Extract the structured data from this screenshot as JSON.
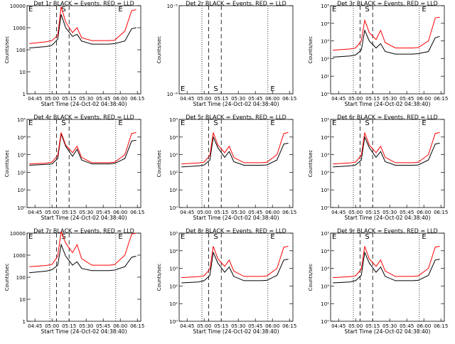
{
  "chart_data": [
    {
      "type": "line",
      "title": "Det 1r BLACK = Events, RED = LLD",
      "ylabel": "Counts/sec",
      "xlabel": "Start Time (24-Oct-02 04:38:40)",
      "yscale": "log",
      "ylim": [
        1,
        10000
      ],
      "yticks": [
        "1",
        "10",
        "100",
        "1000",
        "10000"
      ],
      "xticks": [
        "04:45",
        "05:00",
        "05:15",
        "05:30",
        "05:45",
        "06:00",
        "06:15"
      ],
      "markers": [
        "E",
        "S",
        "E"
      ],
      "series": [
        {
          "color": "#000000",
          "x": [
            "04:40",
            "04:55",
            "05:00",
            "05:05",
            "05:08",
            "05:12",
            "05:18",
            "05:22",
            "05:26",
            "05:35",
            "05:50",
            "05:55",
            "06:04",
            "06:10",
            "06:14"
          ],
          "y": [
            120,
            140,
            160,
            300,
            4000,
            1000,
            400,
            500,
            250,
            180,
            180,
            190,
            250,
            900,
            1000
          ]
        },
        {
          "color": "#ff0000",
          "x": [
            "04:40",
            "04:55",
            "05:00",
            "05:05",
            "05:08",
            "05:12",
            "05:18",
            "05:22",
            "05:26",
            "05:35",
            "05:50",
            "05:55",
            "06:04",
            "06:10",
            "06:14"
          ],
          "y": [
            190,
            230,
            260,
            450,
            9000,
            1800,
            600,
            1000,
            350,
            260,
            260,
            270,
            700,
            6000,
            6500
          ]
        }
      ]
    },
    {
      "type": "line",
      "title": "Det 2r BLACK = Events, RED = LLD",
      "ylabel": "Counts/sec",
      "xlabel": "Start Time (24-Oct-02 04:38:40)",
      "yscale": "log",
      "ylim": [
        1e-06,
        1e-05
      ],
      "yticks": [
        "10⁻⁶",
        "10⁻⁵"
      ],
      "xticks": [
        "04:45",
        "05:00",
        "05:15",
        "05:30",
        "05:45",
        "06:00",
        "06:15"
      ],
      "markers": [
        "E",
        "S",
        "E"
      ],
      "series": []
    },
    {
      "type": "line",
      "title": "Det 3r BLACK = Events, RED = LLD",
      "ylabel": "Counts/sec",
      "xlabel": "Start Time (24-Oct-02 04:38:40)",
      "yscale": "log",
      "ylim": [
        1,
        100000
      ],
      "yticks": [
        "10⁰",
        "10¹",
        "10²",
        "10³",
        "10⁴",
        "10⁵"
      ],
      "xticks": [
        "04:45",
        "05:00",
        "05:15",
        "05:30",
        "05:45",
        "06:00",
        "06:15"
      ],
      "markers": [
        "E",
        "S",
        "E"
      ],
      "series": [
        {
          "color": "#000000",
          "x": [
            "04:40",
            "04:55",
            "05:00",
            "05:05",
            "05:08",
            "05:12",
            "05:18",
            "05:22",
            "05:26",
            "05:35",
            "05:50",
            "05:55",
            "06:04",
            "06:10",
            "06:14"
          ],
          "y": [
            120,
            140,
            160,
            300,
            4000,
            1000,
            400,
            700,
            250,
            180,
            180,
            190,
            250,
            1500,
            1800
          ]
        },
        {
          "color": "#ff0000",
          "x": [
            "04:40",
            "04:55",
            "05:00",
            "05:05",
            "05:08",
            "05:12",
            "05:18",
            "05:22",
            "05:26",
            "05:35",
            "05:50",
            "05:55",
            "06:04",
            "06:10",
            "06:14"
          ],
          "y": [
            300,
            350,
            400,
            1000,
            15000,
            3000,
            1200,
            4000,
            800,
            400,
            400,
            420,
            1000,
            20000,
            22000
          ]
        }
      ]
    },
    {
      "type": "line",
      "title": "Det 4r BLACK = Events, RED = LLD",
      "ylabel": "Counts/sec",
      "xlabel": "Start Time (24-Oct-02 04:38:40)",
      "yscale": "log",
      "ylim": [
        1,
        100000
      ],
      "yticks": [
        "10⁰",
        "10¹",
        "10²",
        "10³",
        "10⁴",
        "10⁵"
      ],
      "xticks": [
        "04:45",
        "05:00",
        "05:15",
        "05:30",
        "05:45",
        "06:00",
        "06:15"
      ],
      "markers": [
        "E",
        "S",
        "E"
      ],
      "series": [
        {
          "color": "#000000",
          "x": [
            "04:40",
            "04:55",
            "05:00",
            "05:05",
            "05:08",
            "05:12",
            "05:18",
            "05:22",
            "05:26",
            "05:35",
            "05:50",
            "05:55",
            "06:04",
            "06:10",
            "06:14"
          ],
          "y": [
            250,
            280,
            300,
            600,
            15000,
            3000,
            800,
            2000,
            500,
            300,
            300,
            320,
            600,
            6000,
            6500
          ]
        },
        {
          "color": "#ff0000",
          "x": [
            "04:40",
            "04:55",
            "05:00",
            "05:05",
            "05:08",
            "05:12",
            "05:18",
            "05:22",
            "05:26",
            "05:35",
            "05:50",
            "05:55",
            "06:04",
            "06:10",
            "06:14"
          ],
          "y": [
            300,
            330,
            380,
            900,
            18000,
            3500,
            1300,
            3000,
            700,
            350,
            350,
            370,
            1000,
            16000,
            18000
          ]
        }
      ]
    },
    {
      "type": "line",
      "title": "Det 5r BLACK = Events, RED = LLD",
      "ylabel": "Counts/sec",
      "xlabel": "Start Time (24-Oct-02 04:38:40)",
      "yscale": "log",
      "ylim": [
        1,
        100000
      ],
      "yticks": [
        "10⁰",
        "10¹",
        "10²",
        "10³",
        "10⁴",
        "10⁵"
      ],
      "xticks": [
        "04:45",
        "05:00",
        "05:15",
        "05:30",
        "05:45",
        "06:00",
        "06:15"
      ],
      "markers": [
        "E",
        "S",
        "E"
      ],
      "series": [
        {
          "color": "#000000",
          "x": [
            "04:40",
            "04:55",
            "05:00",
            "05:05",
            "05:08",
            "05:12",
            "05:18",
            "05:22",
            "05:26",
            "05:35",
            "05:50",
            "05:55",
            "06:04",
            "06:10",
            "06:14"
          ],
          "y": [
            200,
            230,
            260,
            500,
            10000,
            2500,
            700,
            1500,
            400,
            250,
            250,
            260,
            500,
            4000,
            4500
          ]
        },
        {
          "color": "#ff0000",
          "x": [
            "04:40",
            "04:55",
            "05:00",
            "05:05",
            "05:08",
            "05:12",
            "05:18",
            "05:22",
            "05:26",
            "05:35",
            "05:50",
            "05:55",
            "06:04",
            "06:10",
            "06:14"
          ],
          "y": [
            300,
            340,
            380,
            900,
            18000,
            3500,
            1300,
            3000,
            700,
            350,
            350,
            370,
            1000,
            16000,
            18000
          ]
        }
      ]
    },
    {
      "type": "line",
      "title": "Det 6r BLACK = Events, RED = LLD",
      "ylabel": "Counts/sec",
      "xlabel": "Start Time (24-Oct-02 04:38:40)",
      "yscale": "log",
      "ylim": [
        1,
        100000
      ],
      "yticks": [
        "10⁰",
        "10¹",
        "10²",
        "10³",
        "10⁴",
        "10⁵"
      ],
      "xticks": [
        "04:45",
        "05:00",
        "05:15",
        "05:30",
        "05:45",
        "06:00",
        "06:15"
      ],
      "markers": [
        "E",
        "S",
        "E"
      ],
      "series": [
        {
          "color": "#000000",
          "x": [
            "04:40",
            "04:55",
            "05:00",
            "05:05",
            "05:08",
            "05:12",
            "05:18",
            "05:22",
            "05:26",
            "05:35",
            "05:50",
            "05:55",
            "06:04",
            "06:10",
            "06:14"
          ],
          "y": [
            200,
            230,
            260,
            500,
            10000,
            2500,
            700,
            1500,
            400,
            250,
            250,
            260,
            500,
            4000,
            4500
          ]
        },
        {
          "color": "#ff0000",
          "x": [
            "04:40",
            "04:55",
            "05:00",
            "05:05",
            "05:08",
            "05:12",
            "05:18",
            "05:22",
            "05:26",
            "05:35",
            "05:50",
            "05:55",
            "06:04",
            "06:10",
            "06:14"
          ],
          "y": [
            300,
            340,
            380,
            900,
            18000,
            3500,
            1300,
            3000,
            700,
            350,
            350,
            370,
            1000,
            16000,
            18000
          ]
        }
      ]
    },
    {
      "type": "line",
      "title": "Det 7r BLACK = Events, RED = LLD",
      "ylabel": "Counts/sec",
      "xlabel": "Start Time (24-Oct-02 04:38:40)",
      "yscale": "log",
      "ylim": [
        1,
        10000
      ],
      "yticks": [
        "1",
        "10",
        "100",
        "1000",
        "10000"
      ],
      "xticks": [
        "04:45",
        "05:00",
        "05:15",
        "05:30",
        "05:45",
        "06:00",
        "06:15"
      ],
      "markers": [
        "E",
        "S",
        "E"
      ],
      "series": [
        {
          "color": "#000000",
          "x": [
            "04:40",
            "04:55",
            "05:00",
            "05:05",
            "05:08",
            "05:12",
            "05:18",
            "05:22",
            "05:26",
            "05:35",
            "05:50",
            "05:55",
            "06:04",
            "06:10",
            "06:14"
          ],
          "y": [
            160,
            190,
            220,
            350,
            3000,
            900,
            350,
            500,
            250,
            200,
            200,
            210,
            300,
            800,
            900
          ]
        },
        {
          "color": "#ff0000",
          "x": [
            "04:40",
            "04:55",
            "05:00",
            "05:05",
            "05:08",
            "05:12",
            "05:18",
            "05:22",
            "05:26",
            "05:35",
            "05:50",
            "05:55",
            "06:04",
            "06:10",
            "06:14"
          ],
          "y": [
            300,
            340,
            380,
            900,
            12000,
            3500,
            1300,
            3000,
            700,
            350,
            350,
            370,
            1000,
            9000,
            10000
          ]
        }
      ]
    },
    {
      "type": "line",
      "title": "Det 8r BLACK = Events, RED = LLD",
      "ylabel": "Counts/sec",
      "xlabel": "Start Time (24-Oct-02 04:38:40)",
      "yscale": "log",
      "ylim": [
        1,
        100000
      ],
      "yticks": [
        "10⁰",
        "10¹",
        "10²",
        "10³",
        "10⁴",
        "10⁵"
      ],
      "xticks": [
        "04:45",
        "05:00",
        "05:15",
        "05:30",
        "05:45",
        "06:00",
        "06:15"
      ],
      "markers": [
        "E",
        "S",
        "E"
      ],
      "series": [
        {
          "color": "#000000",
          "x": [
            "04:40",
            "04:55",
            "05:00",
            "05:05",
            "05:08",
            "05:12",
            "05:18",
            "05:22",
            "05:26",
            "05:35",
            "05:50",
            "05:55",
            "06:04",
            "06:10",
            "06:14"
          ],
          "y": [
            150,
            170,
            200,
            400,
            8000,
            2000,
            600,
            1200,
            350,
            200,
            200,
            210,
            400,
            3000,
            3300
          ]
        },
        {
          "color": "#ff0000",
          "x": [
            "04:40",
            "04:55",
            "05:00",
            "05:05",
            "05:08",
            "05:12",
            "05:18",
            "05:22",
            "05:26",
            "05:35",
            "05:50",
            "05:55",
            "06:04",
            "06:10",
            "06:14"
          ],
          "y": [
            300,
            340,
            380,
            900,
            18000,
            3500,
            1300,
            3000,
            700,
            350,
            350,
            370,
            1000,
            16000,
            18000
          ]
        }
      ]
    },
    {
      "type": "line",
      "title": "Det 9r BLACK = Events, RED = LLD",
      "ylabel": "Counts/sec",
      "xlabel": "Start Time (24-Oct-02 04:38:40)",
      "yscale": "log",
      "ylim": [
        1,
        100000
      ],
      "yticks": [
        "10⁰",
        "10¹",
        "10²",
        "10³",
        "10⁴",
        "10⁵"
      ],
      "xticks": [
        "04:45",
        "05:00",
        "05:15",
        "05:30",
        "05:45",
        "06:00",
        "06:15"
      ],
      "markers": [
        "E",
        "S",
        "E"
      ],
      "series": [
        {
          "color": "#000000",
          "x": [
            "04:40",
            "04:55",
            "05:00",
            "05:05",
            "05:08",
            "05:12",
            "05:18",
            "05:22",
            "05:26",
            "05:35",
            "05:50",
            "05:55",
            "06:04",
            "06:10",
            "06:14"
          ],
          "y": [
            150,
            170,
            200,
            400,
            8000,
            2000,
            600,
            1200,
            350,
            200,
            200,
            210,
            400,
            3000,
            3300
          ]
        },
        {
          "color": "#ff0000",
          "x": [
            "04:40",
            "04:55",
            "05:00",
            "05:05",
            "05:08",
            "05:12",
            "05:18",
            "05:22",
            "05:26",
            "05:35",
            "05:50",
            "05:55",
            "06:04",
            "06:10",
            "06:14"
          ],
          "y": [
            300,
            340,
            380,
            900,
            18000,
            3500,
            1300,
            3000,
            700,
            350,
            350,
            370,
            1000,
            16000,
            18000
          ]
        }
      ]
    }
  ]
}
